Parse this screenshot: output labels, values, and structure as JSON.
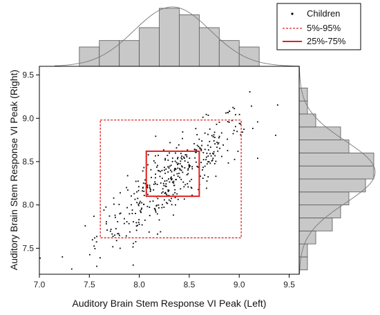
{
  "chart_data": {
    "type": "scatter",
    "title": "",
    "xlabel": "Auditory Brain Stem Response VI Peak (Left)",
    "ylabel": "Auditory Brain Stem Response VI Peak (Right)",
    "xlim": [
      7.0,
      9.6
    ],
    "ylim": [
      7.2,
      9.6
    ],
    "xticks": [
      "7.0",
      "7.5",
      "8.0",
      "8.5",
      "9.0",
      "9.5"
    ],
    "yticks": [
      "7.5",
      "8.0",
      "8.5",
      "9.0",
      "9.5"
    ],
    "legend": {
      "position": "top-right",
      "entries": [
        "Children",
        "5%-95%",
        "25%-75%"
      ]
    },
    "series": [
      {
        "name": "Children",
        "n_points": 420,
        "x_mean": 8.33,
        "x_sd": 0.38,
        "y_mean": 8.3,
        "y_sd": 0.38,
        "correlation": 0.86
      }
    ],
    "percentile_boxes": [
      {
        "name": "5%-95%",
        "x": [
          7.61,
          9.02
        ],
        "y": [
          7.62,
          8.98
        ],
        "style": "dashed",
        "color": "#e02020"
      },
      {
        "name": "25%-75%",
        "x": [
          8.07,
          8.6
        ],
        "y": [
          8.1,
          8.62
        ],
        "style": "solid",
        "color": "#e02020"
      }
    ],
    "top_histogram": {
      "axis": "x",
      "bin_edges": [
        7.2,
        7.4,
        7.6,
        7.8,
        8.0,
        8.2,
        8.4,
        8.6,
        8.8,
        9.0,
        9.2,
        9.4
      ],
      "counts": [
        0,
        3,
        4,
        4,
        6,
        9,
        8,
        6,
        4,
        3,
        0
      ]
    },
    "right_histogram": {
      "axis": "y",
      "bin_edges": [
        7.25,
        7.4,
        7.55,
        7.7,
        7.85,
        8.0,
        8.15,
        8.3,
        8.45,
        8.6,
        8.75,
        8.9,
        9.05,
        9.2,
        9.35,
        9.5
      ],
      "counts": [
        1,
        1,
        2,
        4,
        5,
        6,
        8,
        9,
        9,
        6,
        5,
        2,
        1,
        1,
        0
      ]
    },
    "grid": false
  },
  "colors": {
    "points": "#000000",
    "box": "#e02020",
    "hist_fill": "#c8c8c8",
    "hist_stroke": "#555555",
    "curve": "#777777",
    "axis": "#000000"
  }
}
